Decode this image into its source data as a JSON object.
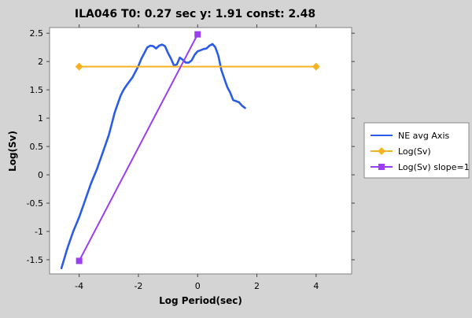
{
  "chart_data": {
    "type": "line",
    "title": "ILA046 T0: 0.27 sec  y: 1.91 const: 2.48",
    "xlabel": "Log Period(sec)",
    "ylabel": "Log(Sv)",
    "xlim": [
      -5.0,
      5.2
    ],
    "ylim": [
      -1.75,
      2.6
    ],
    "xticks": [
      -4,
      -2,
      0,
      2,
      4
    ],
    "yticks": [
      -1.5,
      -1,
      -0.5,
      0,
      0.5,
      1,
      1.5,
      2,
      2.5
    ],
    "grid": false,
    "legend_position": "right",
    "series": [
      {
        "name": "NE avg Axis",
        "color": "#2b5ce6",
        "marker": "none",
        "x": [
          -4.6,
          -4.4,
          -4.2,
          -4.0,
          -3.8,
          -3.6,
          -3.4,
          -3.2,
          -3.0,
          -2.9,
          -2.8,
          -2.7,
          -2.6,
          -2.5,
          -2.4,
          -2.3,
          -2.2,
          -2.1,
          -2.0,
          -1.9,
          -1.8,
          -1.7,
          -1.6,
          -1.5,
          -1.4,
          -1.3,
          -1.2,
          -1.1,
          -1.0,
          -0.9,
          -0.8,
          -0.7,
          -0.6,
          -0.5,
          -0.4,
          -0.3,
          -0.2,
          -0.1,
          0.0,
          0.1,
          0.2,
          0.3,
          0.4,
          0.5,
          0.6,
          0.7,
          0.8,
          0.9,
          1.0,
          1.1,
          1.2,
          1.3,
          1.4,
          1.5,
          1.6
        ],
        "y": [
          -1.65,
          -1.3,
          -1.0,
          -0.75,
          -0.45,
          -0.15,
          0.1,
          0.4,
          0.7,
          0.9,
          1.1,
          1.25,
          1.4,
          1.5,
          1.58,
          1.65,
          1.72,
          1.82,
          1.92,
          2.05,
          2.15,
          2.25,
          2.28,
          2.27,
          2.23,
          2.28,
          2.3,
          2.27,
          2.15,
          2.05,
          1.93,
          1.95,
          2.07,
          2.03,
          1.98,
          1.98,
          2.02,
          2.12,
          2.18,
          2.2,
          2.22,
          2.23,
          2.28,
          2.31,
          2.25,
          2.1,
          1.85,
          1.7,
          1.55,
          1.45,
          1.32,
          1.3,
          1.28,
          1.22,
          1.18
        ]
      },
      {
        "name": "Log(Sv)",
        "color": "#f5b324",
        "marker": "diamond",
        "x": [
          -4.0,
          4.0
        ],
        "y": [
          1.91,
          1.91
        ]
      },
      {
        "name": "Log(Sv) slope=1",
        "color": "#9a3ff0",
        "marker": "square",
        "x": [
          -4.0,
          0.0
        ],
        "y": [
          -1.52,
          2.48
        ]
      }
    ]
  }
}
